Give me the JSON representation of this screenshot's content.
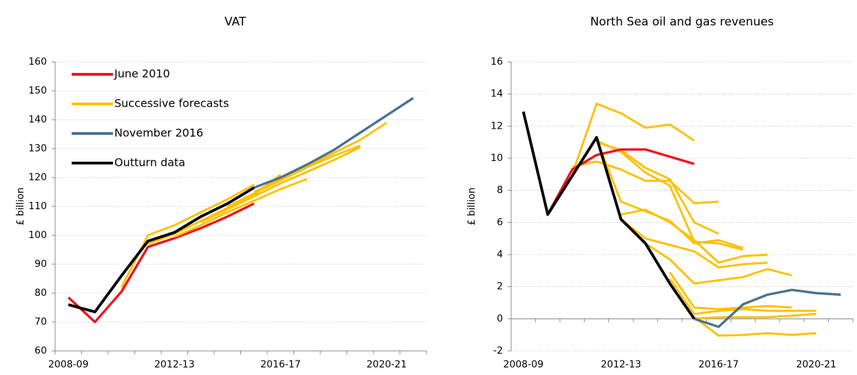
{
  "chart_data": [
    {
      "type": "line",
      "title": "VAT",
      "ylabel": "£ billion",
      "categories": [
        "2008-09",
        null,
        null,
        null,
        "2012-13",
        null,
        null,
        null,
        "2016-17",
        null,
        null,
        null,
        "2020-21",
        null
      ],
      "ylim": [
        60,
        160
      ],
      "yticks": [
        60,
        70,
        80,
        90,
        100,
        110,
        120,
        130,
        140,
        150,
        160
      ],
      "grid": true,
      "legend": "upper left",
      "series": [
        {
          "name": "June 2010",
          "color": "#f0141e",
          "values": [
            78.5,
            70,
            80.5,
            96,
            99,
            102.5,
            106.5,
            111,
            null,
            null,
            null,
            null,
            null,
            null
          ]
        },
        {
          "name": "Successive forecasts",
          "color": "#ffc000",
          "lines": [
            [
              null,
              null,
              82,
              100,
              103.5,
              108,
              112.5,
              117.5,
              null,
              null,
              null,
              null,
              null,
              null
            ],
            [
              null,
              null,
              null,
              97,
              100.5,
              105,
              109.5,
              114,
              121,
              null,
              null,
              null,
              null,
              null
            ],
            [
              null,
              null,
              null,
              null,
              99.5,
              103.5,
              108,
              112,
              116,
              119.5,
              null,
              null,
              null,
              null
            ],
            [
              null,
              null,
              null,
              null,
              null,
              104.5,
              109,
              113.5,
              118,
              122,
              126,
              130.5,
              null,
              null
            ],
            [
              null,
              null,
              null,
              null,
              null,
              null,
              110,
              114.5,
              119,
              123.5,
              127.5,
              131,
              null,
              null
            ],
            [
              null,
              null,
              null,
              null,
              null,
              null,
              null,
              115,
              119.5,
              124,
              128.5,
              133,
              139,
              null
            ]
          ]
        },
        {
          "name": "November 2016",
          "color": "#4a7290",
          "values": [
            null,
            null,
            null,
            null,
            null,
            null,
            null,
            116.5,
            120,
            124.5,
            129.5,
            135.5,
            141.5,
            147.5
          ]
        },
        {
          "name": "Outturn data",
          "color": "#000000",
          "values": [
            76,
            73.5,
            86,
            98,
            101,
            106.5,
            111,
            116.5,
            null,
            null,
            null,
            null,
            null,
            null
          ]
        }
      ]
    },
    {
      "type": "line",
      "title": "North Sea oil and gas revenues",
      "ylabel": "£ billion",
      "categories": [
        "2008-09",
        null,
        null,
        null,
        "2012-13",
        null,
        null,
        null,
        "2016-17",
        null,
        null,
        null,
        "2020-21",
        null
      ],
      "ylim": [
        -2,
        16
      ],
      "yticks": [
        -2,
        0,
        2,
        4,
        6,
        8,
        10,
        12,
        14,
        16
      ],
      "grid": true,
      "series": [
        {
          "color": "#ffc000",
          "lines": [
            [
              null,
              null,
              9.0,
              13.4,
              12.8,
              11.9,
              12.1,
              11.1,
              null,
              null,
              null,
              null,
              null,
              null
            ],
            [
              null,
              null,
              9.5,
              9.8,
              9.3,
              8.6,
              8.6,
              7.2,
              7.3,
              null,
              null,
              null,
              null,
              null
            ],
            [
              null,
              null,
              null,
              11.0,
              10.5,
              9.4,
              8.7,
              6.0,
              5.3,
              null,
              null,
              null,
              null,
              null
            ],
            [
              null,
              null,
              null,
              11.1,
              10.4,
              9.1,
              8.3,
              4.8,
              4.7,
              4.3,
              null,
              null,
              null,
              null
            ],
            [
              null,
              null,
              null,
              11.2,
              7.3,
              6.7,
              6.1,
              4.7,
              4.9,
              4.4,
              null,
              null,
              null,
              null
            ],
            [
              null,
              null,
              null,
              null,
              6.5,
              6.8,
              6.0,
              4.9,
              3.5,
              3.9,
              4.0,
              null,
              null,
              null
            ],
            [
              null,
              null,
              null,
              null,
              6.2,
              5.0,
              4.6,
              4.2,
              3.2,
              3.4,
              3.5,
              null,
              null,
              null
            ],
            [
              null,
              null,
              null,
              null,
              null,
              4.7,
              3.7,
              2.2,
              2.4,
              2.6,
              3.1,
              2.7,
              null,
              null
            ],
            [
              null,
              null,
              null,
              null,
              null,
              null,
              2.9,
              0.7,
              0.6,
              0.7,
              0.8,
              0.7,
              null,
              null
            ],
            [
              null,
              null,
              null,
              null,
              null,
              null,
              2.5,
              0.3,
              0.5,
              0.6,
              0.5,
              0.5,
              0.5,
              null
            ],
            [
              null,
              null,
              null,
              null,
              null,
              null,
              null,
              0.1,
              -1.05,
              -1.0,
              -0.9,
              -1.0,
              -0.9,
              null
            ],
            [
              null,
              null,
              null,
              null,
              null,
              null,
              null,
              0.0,
              0.1,
              0.1,
              0.1,
              0.2,
              0.3,
              null
            ]
          ]
        },
        {
          "color": "#f0141e",
          "values": [
            null,
            6.5,
            9.3,
            10.2,
            10.55,
            10.55,
            10.1,
            9.65,
            null,
            null,
            null,
            null,
            null,
            null
          ]
        },
        {
          "color": "#4a7290",
          "values": [
            null,
            null,
            null,
            null,
            null,
            null,
            null,
            0,
            -0.5,
            0.9,
            1.5,
            1.8,
            1.6,
            1.5
          ]
        },
        {
          "color": "#000000",
          "values": [
            12.9,
            6.5,
            8.9,
            11.3,
            6.2,
            4.7,
            2.2,
            0,
            null,
            null,
            null,
            null,
            null,
            null
          ]
        }
      ]
    }
  ]
}
